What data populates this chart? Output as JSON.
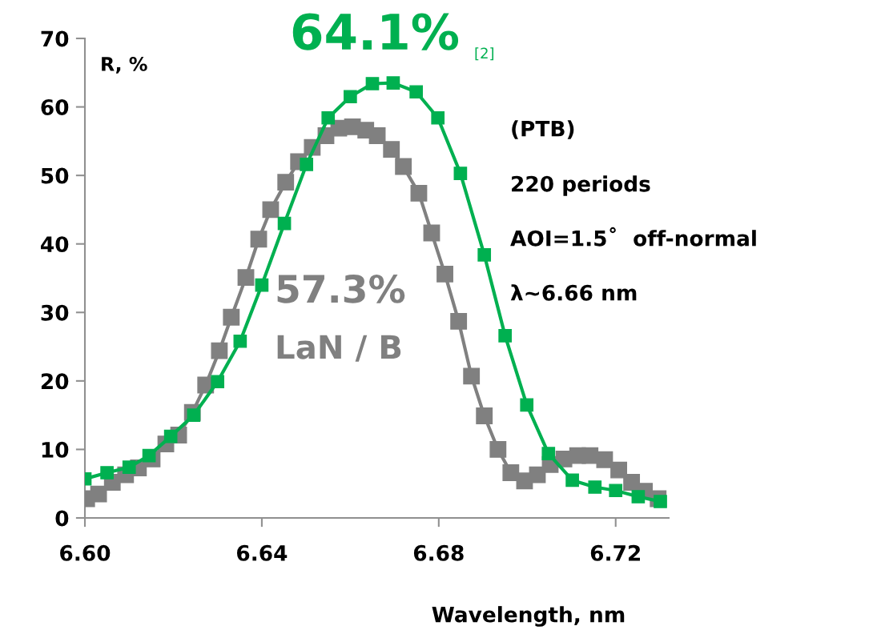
{
  "chart_data": {
    "type": "line",
    "xlabel": "Wavelength, nm",
    "ylabel": "R, %",
    "marker": "square",
    "line_style": "solid",
    "grid": false,
    "legend": false,
    "xlim": [
      6.6,
      6.732
    ],
    "xticks": [
      {
        "value": 6.6,
        "label": "6.60"
      },
      {
        "value": 6.64,
        "label": "6.64"
      },
      {
        "value": 6.68,
        "label": "6.68"
      },
      {
        "value": 6.72,
        "label": "6.72"
      }
    ],
    "ylim": [
      0,
      70
    ],
    "yticks": [
      0,
      10,
      20,
      30,
      40,
      50,
      60,
      70
    ],
    "annotations": [
      "64.1%",
      "[2]",
      "57.3%",
      "(PTB)",
      "220 periods",
      "AOI=1.5˚  off-normal",
      "λ~6.66 nm"
    ],
    "series": [
      {
        "color": "#00b050",
        "x": [
          6.6,
          6.605,
          6.61,
          6.6145,
          6.6194,
          6.6246,
          6.63,
          6.6351,
          6.64,
          6.6451,
          6.6501,
          6.655,
          6.66,
          6.665,
          6.6697,
          6.6749,
          6.6798,
          6.6849,
          6.6903,
          6.695,
          6.6999,
          6.7048,
          6.7102,
          6.7153,
          6.72,
          6.7251,
          6.7301
        ],
        "values": [
          5.7,
          6.6,
          7.4,
          9.1,
          11.9,
          15.0,
          19.9,
          25.8,
          34.0,
          43.0,
          51.6,
          58.4,
          61.5,
          63.4,
          63.5,
          62.2,
          58.4,
          50.3,
          38.4,
          26.6,
          16.5,
          9.4,
          5.5,
          4.5,
          4.0,
          3.1,
          2.4
        ]
      },
      {
        "name": "LaN / B",
        "color": "#808080",
        "x": [
          6.6004,
          6.6031,
          6.6062,
          6.6092,
          6.6121,
          6.6152,
          6.6183,
          6.6212,
          6.6243,
          6.6273,
          6.6304,
          6.6331,
          6.6364,
          6.6393,
          6.642,
          6.6454,
          6.6483,
          6.6514,
          6.6545,
          6.6574,
          6.6605,
          6.6635,
          6.6661,
          6.6693,
          6.672,
          6.6755,
          6.6784,
          6.6814,
          6.6845,
          6.6874,
          6.6903,
          6.6934,
          6.6963,
          6.6994,
          6.7023,
          6.7052,
          6.7083,
          6.7114,
          6.7142,
          6.7175,
          6.7207,
          6.7236,
          6.7265,
          6.7296
        ],
        "values": [
          2.8,
          3.5,
          5.2,
          6.3,
          7.3,
          8.6,
          10.8,
          12.1,
          15.4,
          19.4,
          24.4,
          29.3,
          35.1,
          40.7,
          45.0,
          49.0,
          52.0,
          54.1,
          55.8,
          56.9,
          57.1,
          56.6,
          55.8,
          53.8,
          51.3,
          47.4,
          41.6,
          35.6,
          28.7,
          20.7,
          14.9,
          10.0,
          6.6,
          5.4,
          6.3,
          7.8,
          8.6,
          9.1,
          9.1,
          8.5,
          7.0,
          5.2,
          3.9,
          2.8
        ]
      }
    ]
  }
}
